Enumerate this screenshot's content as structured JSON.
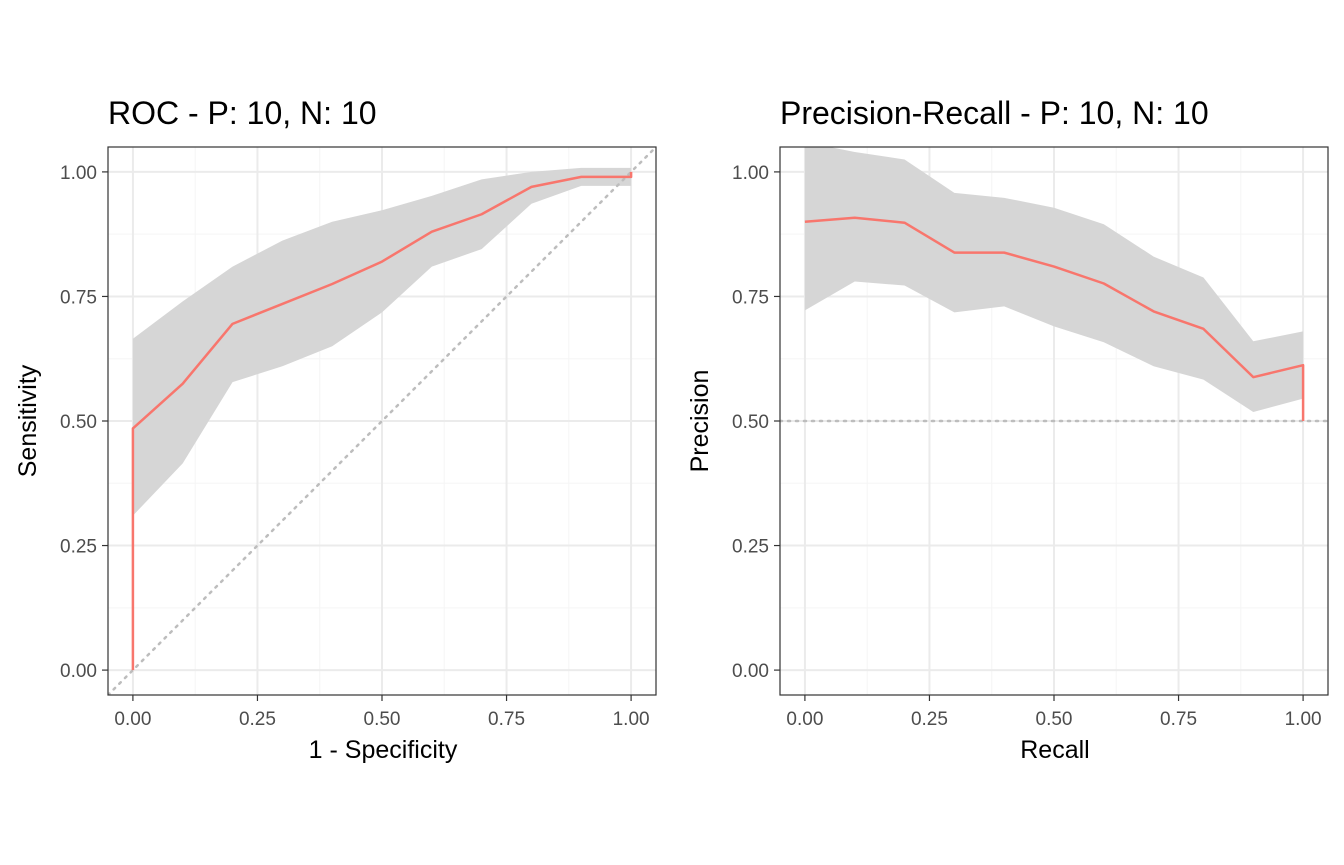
{
  "colors": {
    "line": "#F8766D",
    "ribbon": "#D6D6D6",
    "grid_major": "#EBEBEB",
    "grid_minor": "#F5F5F5",
    "panel_border": "#333333",
    "reference_line": "#BDBDBD",
    "tick_text": "#4D4D4D"
  },
  "chart_data": [
    {
      "type": "line",
      "title": "ROC - P: 10, N: 10",
      "xlabel": "1 - Specificity",
      "ylabel": "Sensitivity",
      "xlim": [
        -0.05,
        1.05
      ],
      "ylim": [
        -0.05,
        1.05
      ],
      "x_ticks": [
        "0.00",
        "0.25",
        "0.50",
        "0.75",
        "1.00"
      ],
      "y_ticks": [
        "0.00",
        "0.25",
        "0.50",
        "0.75",
        "1.00"
      ],
      "grid": true,
      "reference_line": {
        "kind": "diagonal",
        "style": "dotted"
      },
      "series": [
        {
          "x": [
            0,
            0,
            0.1,
            0.2,
            0.3,
            0.4,
            0.5,
            0.6,
            0.7,
            0.8,
            0.9,
            1.0,
            1.0
          ],
          "y": [
            0,
            0.485,
            0.575,
            0.695,
            0.735,
            0.775,
            0.82,
            0.88,
            0.915,
            0.97,
            0.99,
            0.99,
            1.0
          ],
          "ribbon_x": [
            0,
            0.1,
            0.2,
            0.3,
            0.4,
            0.5,
            0.6,
            0.7,
            0.8,
            0.9,
            1.0
          ],
          "ribbon_upper": [
            0.665,
            0.74,
            0.81,
            0.862,
            0.9,
            0.923,
            0.952,
            0.985,
            1.0,
            1.008,
            1.008
          ],
          "ribbon_lower": [
            0.31,
            0.415,
            0.578,
            0.61,
            0.65,
            0.718,
            0.81,
            0.845,
            0.936,
            0.972,
            0.972
          ]
        }
      ]
    },
    {
      "type": "line",
      "title": "Precision-Recall - P: 10, N: 10",
      "xlabel": "Recall",
      "ylabel": "Precision",
      "xlim": [
        -0.05,
        1.05
      ],
      "ylim": [
        -0.05,
        1.05
      ],
      "x_ticks": [
        "0.00",
        "0.25",
        "0.50",
        "0.75",
        "1.00"
      ],
      "y_ticks": [
        "0.00",
        "0.25",
        "0.50",
        "0.75",
        "1.00"
      ],
      "grid": true,
      "reference_line": {
        "kind": "horizontal",
        "y": 0.5,
        "style": "dotted"
      },
      "series": [
        {
          "x": [
            0,
            0.1,
            0.2,
            0.3,
            0.4,
            0.5,
            0.6,
            0.7,
            0.8,
            0.9,
            1.0,
            1.0
          ],
          "y": [
            0.9,
            0.908,
            0.898,
            0.838,
            0.838,
            0.81,
            0.776,
            0.72,
            0.685,
            0.588,
            0.612,
            0.5
          ],
          "ribbon_x": [
            0,
            0.1,
            0.2,
            0.3,
            0.4,
            0.5,
            0.6,
            0.7,
            0.8,
            0.9,
            1.0
          ],
          "ribbon_upper": [
            1.06,
            1.04,
            1.025,
            0.958,
            0.948,
            0.928,
            0.895,
            0.83,
            0.788,
            0.66,
            0.68
          ],
          "ribbon_lower": [
            0.722,
            0.78,
            0.772,
            0.718,
            0.73,
            0.69,
            0.658,
            0.61,
            0.583,
            0.518,
            0.545
          ]
        }
      ]
    }
  ]
}
